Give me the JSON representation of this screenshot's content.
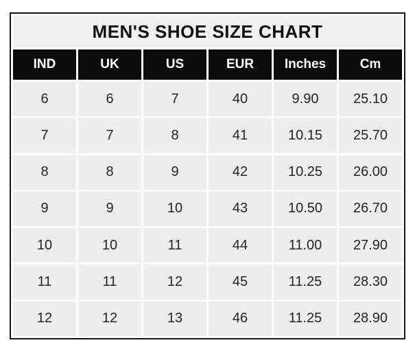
{
  "chart_data": {
    "type": "table",
    "title": "MEN'S SHOE SIZE CHART",
    "columns": [
      "IND",
      "UK",
      "US",
      "EUR",
      "Inches",
      "Cm"
    ],
    "rows": [
      [
        "6",
        "6",
        "7",
        "40",
        "9.90",
        "25.10"
      ],
      [
        "7",
        "7",
        "8",
        "41",
        "10.15",
        "25.70"
      ],
      [
        "8",
        "8",
        "9",
        "42",
        "10.25",
        "26.00"
      ],
      [
        "9",
        "9",
        "10",
        "43",
        "10.50",
        "26.70"
      ],
      [
        "10",
        "10",
        "11",
        "44",
        "11.00",
        "27.90"
      ],
      [
        "11",
        "11",
        "12",
        "45",
        "11.25",
        "28.30"
      ],
      [
        "12",
        "12",
        "13",
        "46",
        "11.25",
        "28.90"
      ]
    ],
    "layout": {
      "title_position": "top-spanning-row",
      "grid": "white-gridlines-on-gray-cells",
      "header_style": "black-background-white-text"
    },
    "colors": {
      "border": "#141414",
      "grid": "#fcfcfb",
      "title_bg": "#f1f0ee",
      "header_bg": "#0c0c0b",
      "header_text": "#ffffff",
      "cell_bg": "#eeedeb",
      "cell_text": "#242424",
      "page_bg": "#ffffff"
    }
  }
}
